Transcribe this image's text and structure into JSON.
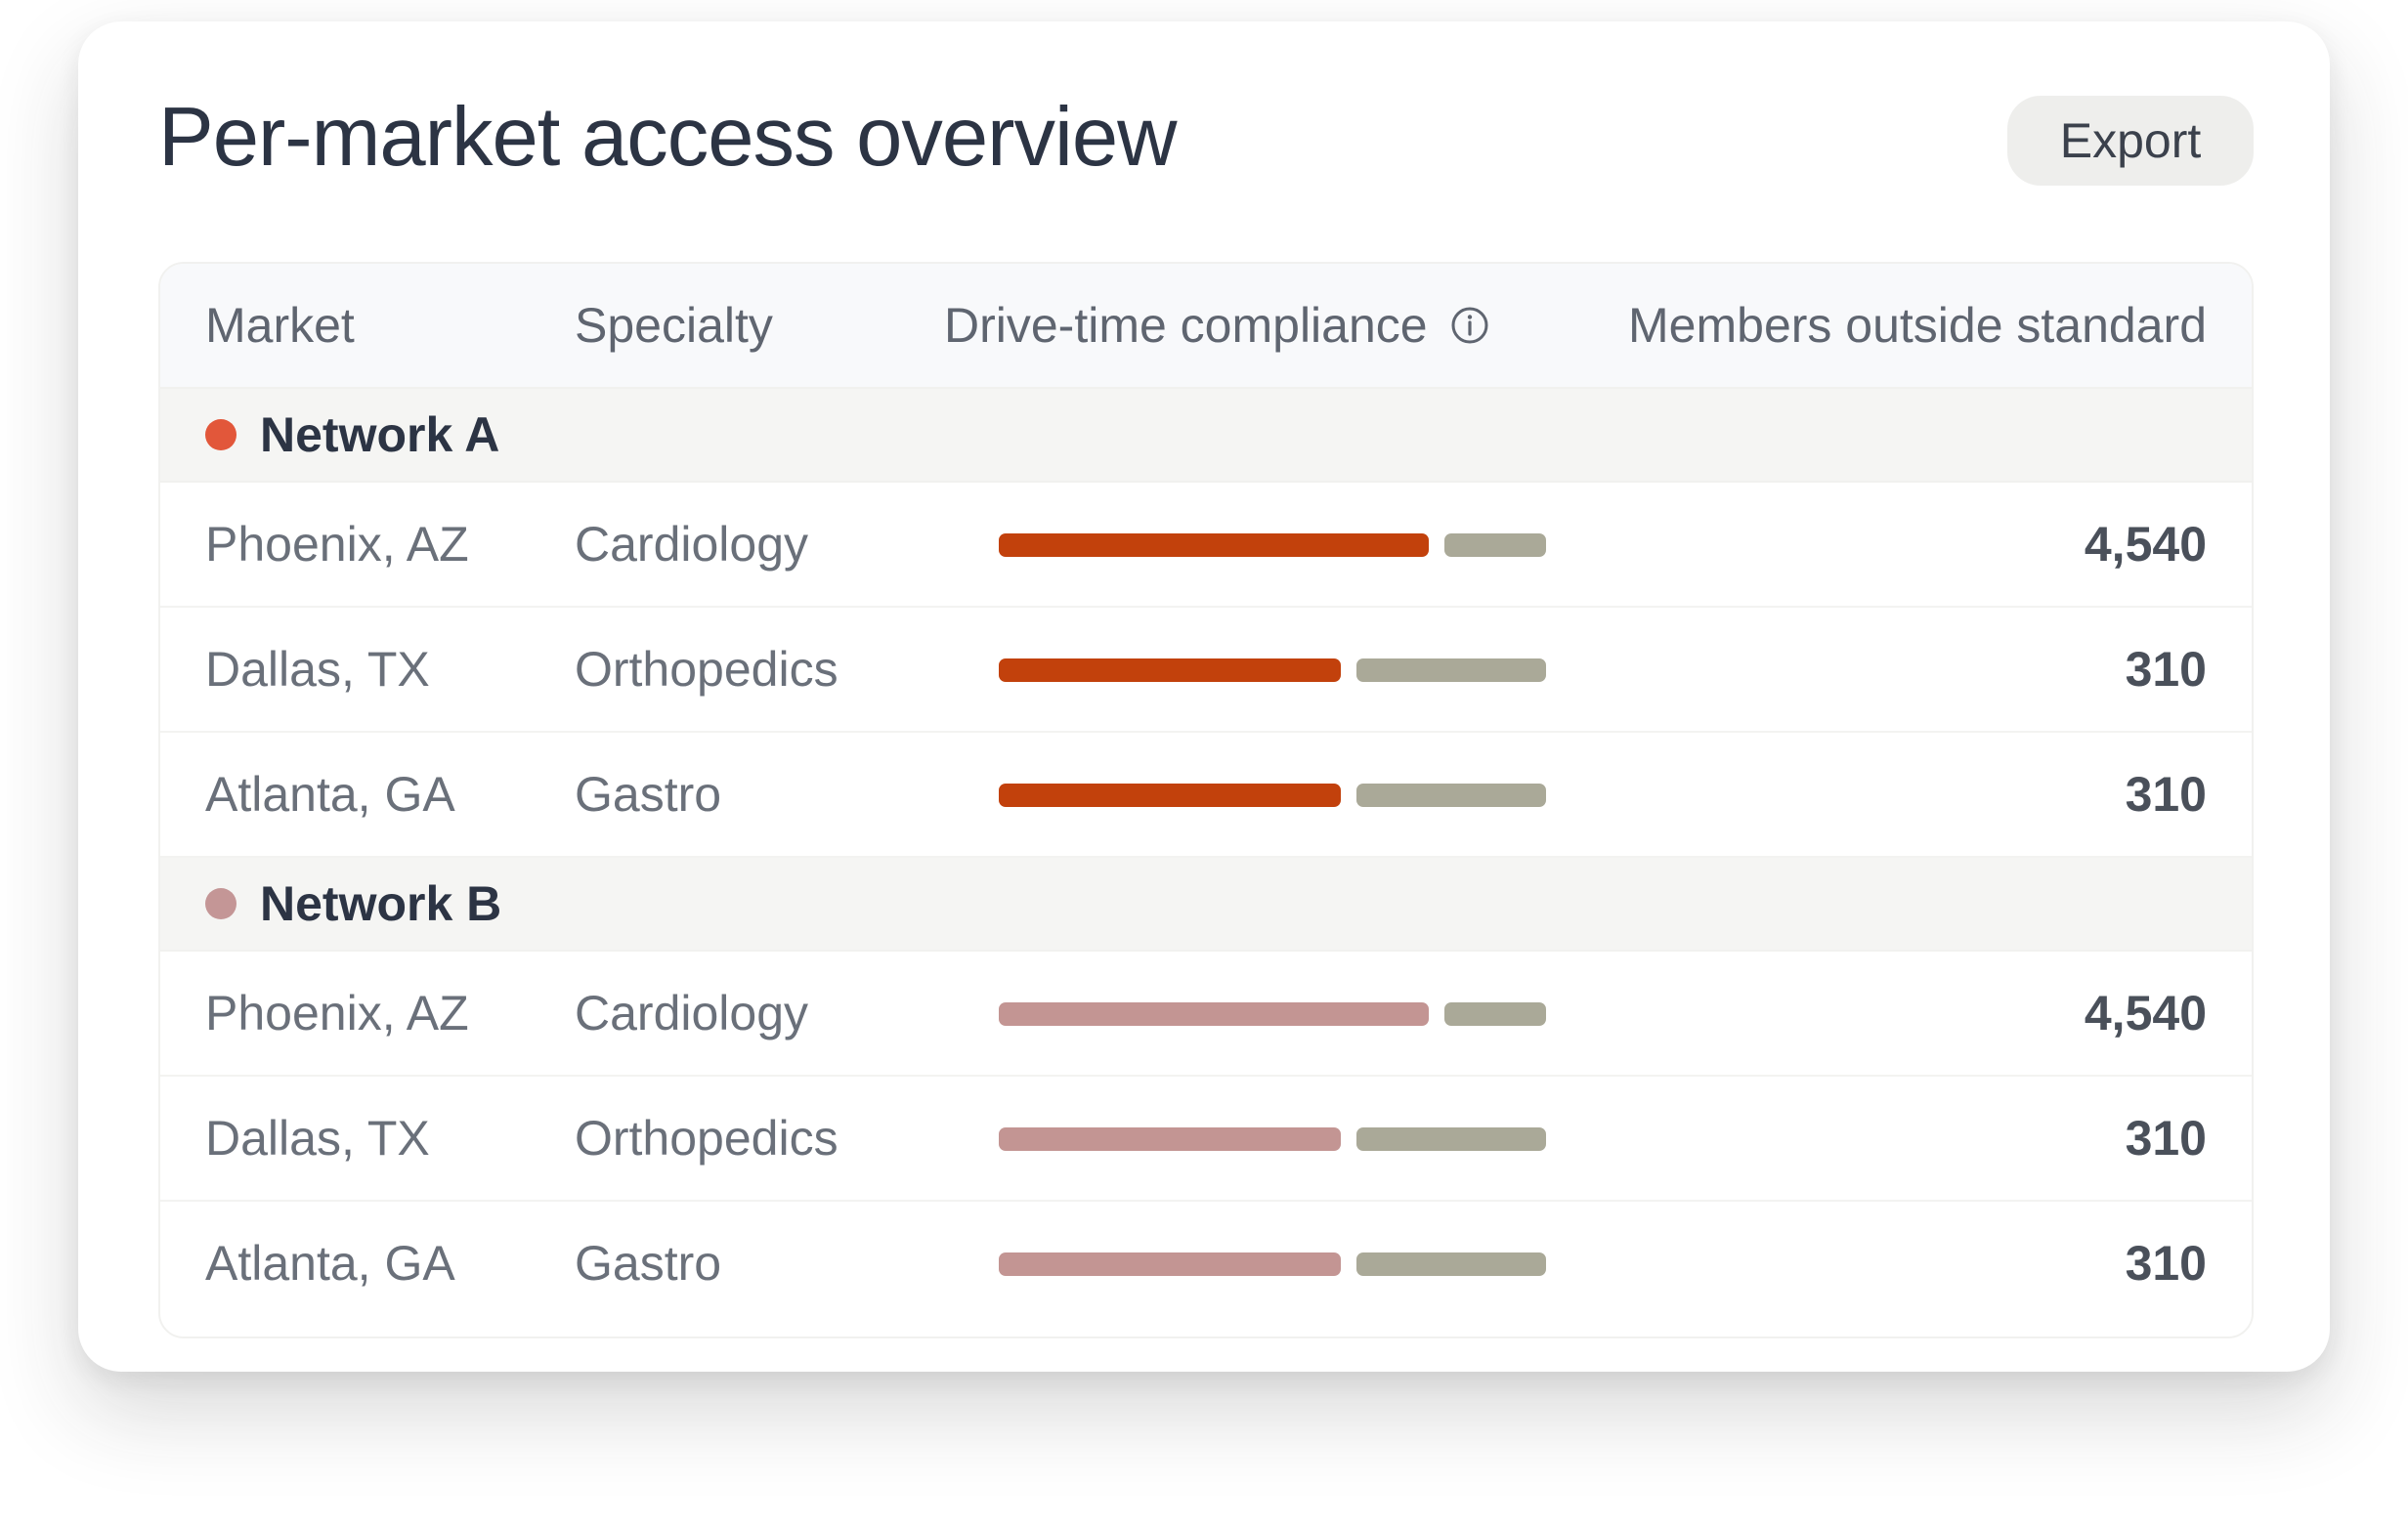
{
  "header": {
    "title": "Per-market access overview",
    "export_label": "Export"
  },
  "table": {
    "columns": {
      "market": "Market",
      "specialty": "Specialty",
      "compliance": "Drive-time compliance",
      "members": "Members outside standard"
    },
    "info_icon": "info-circle-icon",
    "groups": [
      {
        "name": "Network A",
        "color": "#e2573a",
        "bar_color": "#c2410c",
        "rows": [
          {
            "market": "Phoenix, AZ",
            "specialty": "Cardiology",
            "compliance": 0.8,
            "members": "4,540"
          },
          {
            "market": "Dallas, TX",
            "specialty": "Orthopedics",
            "compliance": 0.64,
            "members": "310"
          },
          {
            "market": "Atlanta, GA",
            "specialty": "Gastro",
            "compliance": 0.64,
            "members": "310"
          }
        ]
      },
      {
        "name": "Network B",
        "color": "#c49696",
        "bar_color": "#c39593",
        "rows": [
          {
            "market": "Phoenix, AZ",
            "specialty": "Cardiology",
            "compliance": 0.8,
            "members": "4,540"
          },
          {
            "market": "Dallas, TX",
            "specialty": "Orthopedics",
            "compliance": 0.64,
            "members": "310"
          },
          {
            "market": "Atlanta, GA",
            "specialty": "Gastro",
            "compliance": 0.64,
            "members": "310"
          }
        ]
      }
    ],
    "remainder_color": "#aaa998"
  }
}
